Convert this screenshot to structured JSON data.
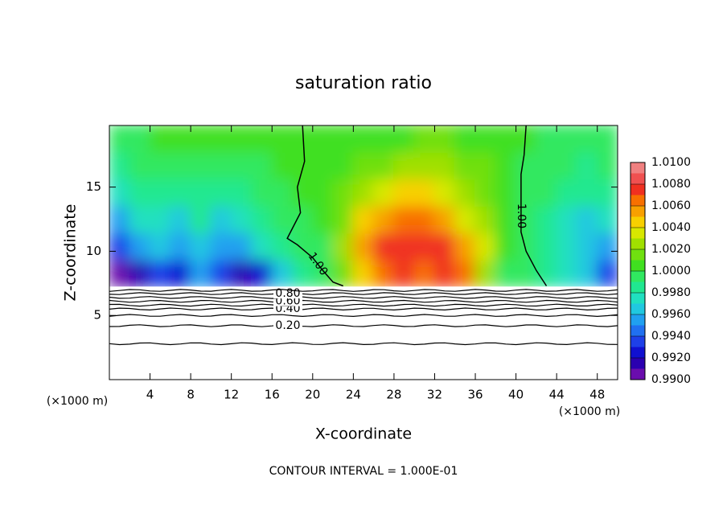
{
  "chart_data": {
    "type": "contourf",
    "title": "saturation ratio",
    "xlabel": "X-coordinate",
    "ylabel": "Z-coordinate",
    "x_unit": "(×1000 m)",
    "y_unit": "(×1000 m)",
    "footer": "CONTOUR INTERVAL = 1.000E-01",
    "xlim": [
      0,
      50
    ],
    "ylim": [
      0,
      19.8
    ],
    "xticks": [
      4,
      8,
      12,
      16,
      20,
      24,
      28,
      32,
      36,
      40,
      44,
      48
    ],
    "yticks": [
      5,
      10,
      15
    ],
    "field": {
      "x": [
        1,
        3,
        5,
        7,
        9,
        11,
        13,
        15,
        17,
        19,
        21,
        23,
        25,
        27,
        29,
        31,
        33,
        35,
        37,
        39,
        41,
        43,
        45,
        47,
        49
      ],
      "z": [
        8.3,
        10.4,
        12.5,
        14.6,
        16.7,
        18.8
      ],
      "values": [
        [
          0.9905,
          0.991,
          0.993,
          0.992,
          0.995,
          0.993,
          0.991,
          0.992,
          0.996,
          0.9985,
          0.9995,
          1.001,
          1.004,
          1.0065,
          1.007,
          1.0065,
          1.007,
          1.006,
          1.002,
          0.9995,
          0.999,
          0.998,
          0.9975,
          0.9965,
          0.993
        ],
        [
          0.993,
          0.995,
          0.996,
          0.9955,
          0.9965,
          0.995,
          0.9955,
          0.997,
          0.998,
          0.999,
          0.9995,
          1.002,
          1.005,
          1.007,
          1.007,
          1.0075,
          1.007,
          1.005,
          1.003,
          1.0,
          0.999,
          0.998,
          0.997,
          0.996,
          0.9955
        ],
        [
          0.995,
          0.997,
          0.9975,
          0.996,
          0.998,
          0.9965,
          0.9975,
          0.998,
          0.999,
          0.9995,
          1.0,
          1.0015,
          1.004,
          1.0055,
          1.006,
          1.0065,
          1.005,
          1.0035,
          1.002,
          1.0,
          0.999,
          0.998,
          0.9975,
          0.9965,
          0.997
        ],
        [
          0.997,
          0.998,
          0.9985,
          0.998,
          0.9985,
          0.998,
          0.9985,
          0.999,
          0.9995,
          1.0,
          1.0,
          1.001,
          1.002,
          1.003,
          1.004,
          1.004,
          1.0035,
          1.0025,
          1.0015,
          1.0,
          0.9995,
          0.999,
          0.9985,
          0.998,
          0.998
        ],
        [
          0.998,
          0.999,
          0.9995,
          0.9992,
          0.9995,
          0.9993,
          0.9995,
          0.9997,
          1.0,
          1.0,
          1.0,
          1.0005,
          1.001,
          1.0015,
          1.002,
          1.002,
          1.002,
          1.0015,
          1.001,
          1.0,
          0.9997,
          0.9993,
          0.999,
          0.9988,
          0.999
        ],
        [
          0.9995,
          0.9995,
          1.0,
          1.0,
          1.0,
          1.0,
          1.0,
          1.0,
          1.0,
          1.0,
          1.0,
          1.0,
          1.0005,
          1.0007,
          1.0008,
          1.001,
          1.001,
          1.0008,
          1.0005,
          1.0,
          1.0,
          0.9995,
          0.9993,
          0.999,
          0.9995
        ]
      ]
    },
    "colorbar": {
      "lim": [
        0.99,
        1.01
      ],
      "step": 0.001,
      "colors": [
        "#6a0dad",
        "#2a00b0",
        "#1010d0",
        "#1e40e8",
        "#2070f0",
        "#20a0f0",
        "#20c8e0",
        "#20e0c0",
        "#20e890",
        "#30e860",
        "#40e020",
        "#70e010",
        "#a0e000",
        "#d8e800",
        "#f8d000",
        "#f8a000",
        "#f87000",
        "#f03020",
        "#f05050",
        "#f08080"
      ],
      "ticks": [
        {
          "value": 0.99,
          "label": "0.9900"
        },
        {
          "value": 0.992,
          "label": "0.9920"
        },
        {
          "value": 0.994,
          "label": "0.9940"
        },
        {
          "value": 0.996,
          "label": "0.9960"
        },
        {
          "value": 0.998,
          "label": "0.9980"
        },
        {
          "value": 1.0,
          "label": "1.0000"
        },
        {
          "value": 1.002,
          "label": "1.0020"
        },
        {
          "value": 1.004,
          "label": "1.0040"
        },
        {
          "value": 1.006,
          "label": "1.0060"
        },
        {
          "value": 1.008,
          "label": "1.0080"
        },
        {
          "value": 1.01,
          "label": "1.0100"
        }
      ]
    },
    "lower_contours": [
      {
        "level": 0.1,
        "z": 2.8
      },
      {
        "level": 0.2,
        "z": 4.2,
        "label": "0.20"
      },
      {
        "level": 0.3,
        "z": 5.0
      },
      {
        "level": 0.4,
        "z": 5.5,
        "label": "0.40"
      },
      {
        "level": 0.5,
        "z": 5.8
      },
      {
        "level": 0.6,
        "z": 6.1,
        "label": "0.60"
      },
      {
        "level": 0.7,
        "z": 6.4
      },
      {
        "level": 0.8,
        "z": 6.7,
        "label": "0.80"
      },
      {
        "level": 0.9,
        "z": 6.95
      }
    ],
    "field_contours": [
      {
        "label": "1.00",
        "x": [
          19,
          19.2,
          18.5,
          18.8,
          17.5,
          18.5,
          20,
          21,
          22,
          23
        ],
        "z": [
          19.8,
          17,
          15,
          13,
          11,
          10.5,
          9.5,
          8.5,
          7.6,
          7.3
        ]
      },
      {
        "label": "1.00",
        "x": [
          41,
          40.8,
          40.5,
          40.5,
          40.5,
          41,
          42,
          43
        ],
        "z": [
          19.8,
          17.5,
          16,
          14,
          11.5,
          10,
          8.5,
          7.3
        ]
      }
    ]
  }
}
